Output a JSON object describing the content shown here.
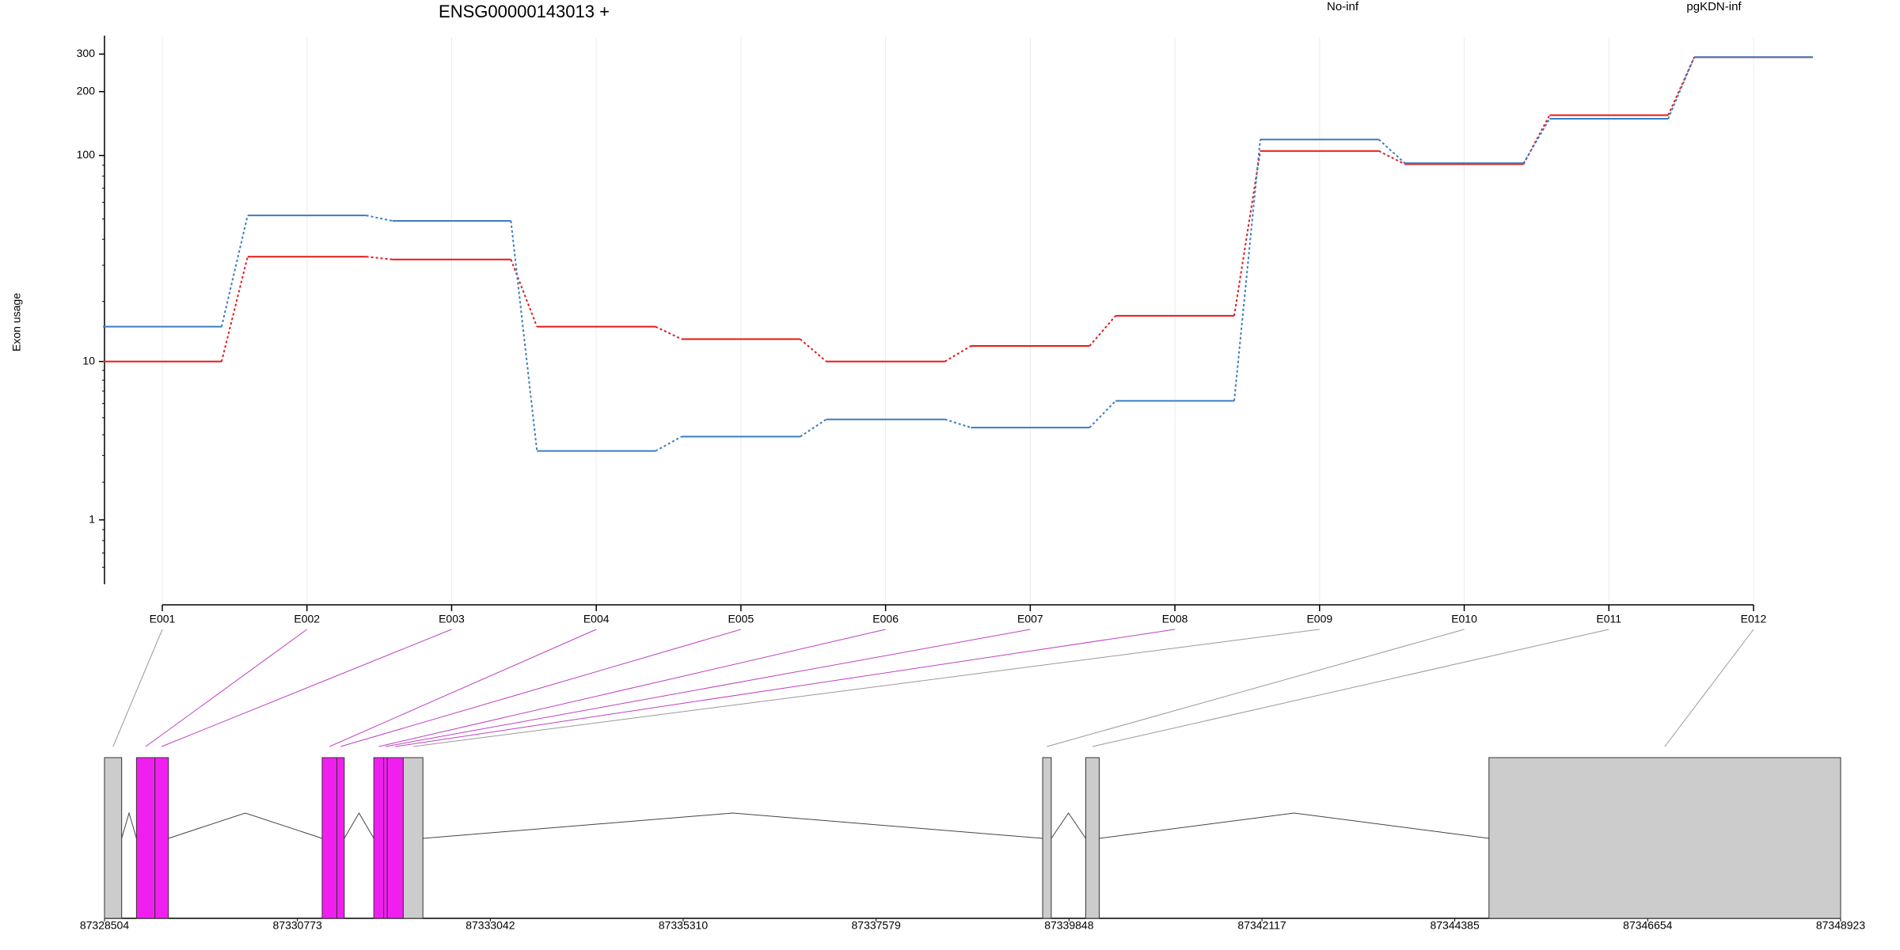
{
  "chart_data": {
    "type": "line",
    "title": "ENSG00000143013 +",
    "y_label": "Exon usage",
    "yscale": "log1p",
    "grid": true,
    "ylim": [
      0,
      360
    ],
    "yticks": [
      1,
      10,
      100,
      200,
      300
    ],
    "categories": [
      "E001",
      "E002",
      "E003",
      "E004",
      "E005",
      "E006",
      "E007",
      "E008",
      "E009",
      "E010",
      "E011",
      "E012"
    ],
    "series": [
      {
        "name": "No-inf",
        "color": "#e31a1c",
        "values": [
          10,
          33,
          32,
          15,
          13,
          10,
          12,
          17,
          105,
          91,
          155,
          290
        ]
      },
      {
        "name": "pgKDN-inf",
        "color": "#3a7dc0",
        "values": [
          15,
          52,
          49,
          3.2,
          3.9,
          4.9,
          4.4,
          6.2,
          119,
          92,
          149,
          290
        ]
      }
    ],
    "gene_model": {
      "xlim": [
        87328504,
        87348923
      ],
      "xticks": [
        87328504,
        87330773,
        87333042,
        87335310,
        87337579,
        87339848,
        87342117,
        87344385,
        87346654,
        87348923
      ],
      "exons": [
        {
          "start": 87328504,
          "end": 87328706,
          "color": "#cccccc"
        },
        {
          "start": 87328880,
          "end": 87329097,
          "color": "#f01ff0"
        },
        {
          "start": 87329097,
          "end": 87329256,
          "color": "#f01ff0"
        },
        {
          "start": 87331064,
          "end": 87331237,
          "color": "#f01ff0"
        },
        {
          "start": 87331237,
          "end": 87331324,
          "color": "#f01ff0"
        },
        {
          "start": 87331671,
          "end": 87331787,
          "color": "#f01ff0"
        },
        {
          "start": 87331787,
          "end": 87331830,
          "color": "#f01ff0"
        },
        {
          "start": 87331830,
          "end": 87332018,
          "color": "#f01ff0"
        },
        {
          "start": 87332018,
          "end": 87332249,
          "color": "#cccccc"
        },
        {
          "start": 87339538,
          "end": 87339639,
          "color": "#cccccc"
        },
        {
          "start": 87340044,
          "end": 87340203,
          "color": "#cccccc"
        },
        {
          "start": 87344787,
          "end": 87348923,
          "color": "#cccccc"
        }
      ]
    }
  }
}
